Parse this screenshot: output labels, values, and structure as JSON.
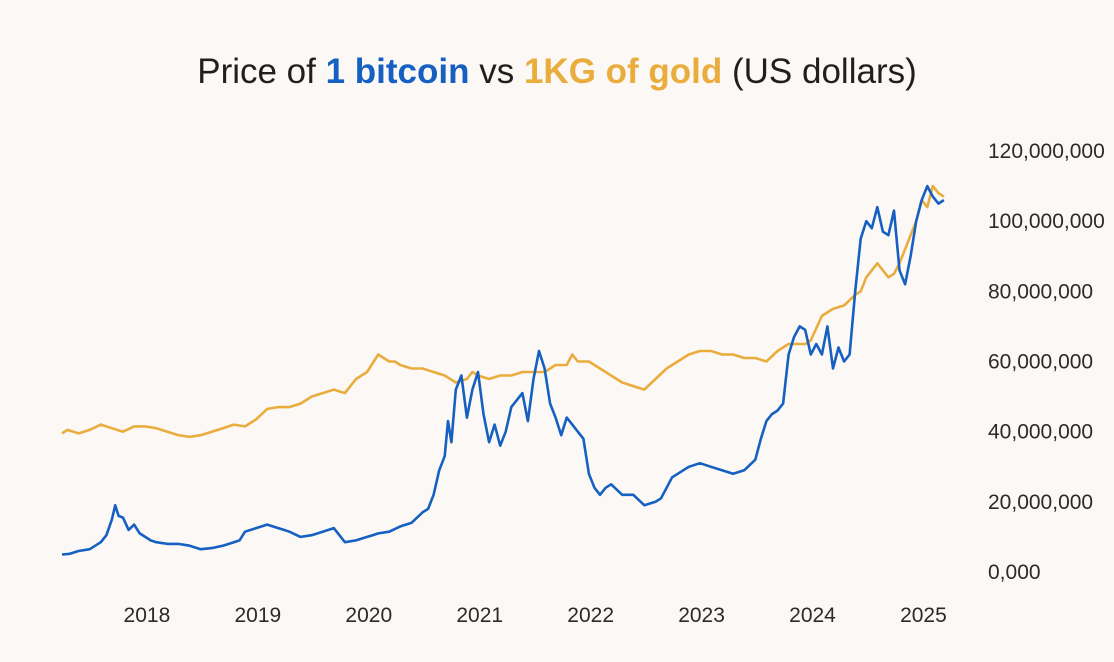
{
  "chart_data": {
    "type": "line",
    "title": {
      "prefix": "Price of ",
      "series1_label": "1 bitcoin",
      "middle": " vs ",
      "series2_label": "1KG of gold",
      "suffix": " (US dollars)"
    },
    "xlabel": "",
    "ylabel": "",
    "xlim": [
      2017.55,
      2025.6
    ],
    "ylim": [
      0,
      120000000
    ],
    "x_ticks": [
      2018,
      2019,
      2020,
      2021,
      2022,
      2023,
      2024,
      2025
    ],
    "x_tick_labels": [
      "2018",
      "2019",
      "2020",
      "2021",
      "2022",
      "2023",
      "2024",
      "2025"
    ],
    "y_ticks": [
      0,
      20000000,
      40000000,
      60000000,
      80000000,
      100000000,
      120000000
    ],
    "y_tick_labels": [
      "0,000",
      "20,000,000",
      "40,000,000",
      "60,000,000",
      "80,000,000",
      "100,000,000",
      "120,000,000"
    ],
    "grid": false,
    "legend": "in title",
    "series": [
      {
        "name": "1 bitcoin",
        "color": "#1560c0",
        "x": [
          2017.55,
          2017.62,
          2017.7,
          2017.8,
          2017.9,
          2017.95,
          2018.0,
          2018.03,
          2018.06,
          2018.1,
          2018.15,
          2018.2,
          2018.25,
          2018.3,
          2018.35,
          2018.4,
          2018.5,
          2018.6,
          2018.7,
          2018.8,
          2018.9,
          2019.0,
          2019.1,
          2019.15,
          2019.2,
          2019.3,
          2019.4,
          2019.5,
          2019.55,
          2019.6,
          2019.7,
          2019.8,
          2019.9,
          2020.0,
          2020.1,
          2020.2,
          2020.3,
          2020.35,
          2020.4,
          2020.5,
          2020.6,
          2020.7,
          2020.8,
          2020.85,
          2020.9,
          2020.95,
          2021.0,
          2021.03,
          2021.06,
          2021.1,
          2021.15,
          2021.2,
          2021.25,
          2021.3,
          2021.35,
          2021.4,
          2021.45,
          2021.5,
          2021.55,
          2021.6,
          2021.7,
          2021.75,
          2021.8,
          2021.85,
          2021.9,
          2021.95,
          2022.0,
          2022.05,
          2022.1,
          2022.15,
          2022.2,
          2022.25,
          2022.3,
          2022.35,
          2022.4,
          2022.45,
          2022.5,
          2022.6,
          2022.7,
          2022.8,
          2022.9,
          2022.95,
          2023.0,
          2023.05,
          2023.1,
          2023.2,
          2023.3,
          2023.4,
          2023.5,
          2023.6,
          2023.7,
          2023.8,
          2023.85,
          2023.9,
          2023.95,
          2024.0,
          2024.05,
          2024.1,
          2024.15,
          2024.2,
          2024.25,
          2024.3,
          2024.35,
          2024.4,
          2024.45,
          2024.5,
          2024.55,
          2024.6,
          2024.65,
          2024.7,
          2024.75,
          2024.8,
          2024.85,
          2024.9,
          2024.95,
          2025.0,
          2025.05,
          2025.1,
          2025.15,
          2025.2,
          2025.25,
          2025.3,
          2025.35,
          2025.4,
          2025.45,
          2025.5
        ],
        "values": [
          5000000,
          5200000,
          6000000,
          6500000,
          8500000,
          10500000,
          15000000,
          19000000,
          16000000,
          15500000,
          12000000,
          13500000,
          11000000,
          10000000,
          9000000,
          8500000,
          8000000,
          8000000,
          7500000,
          6500000,
          6800000,
          7500000,
          8500000,
          9000000,
          11500000,
          12500000,
          13500000,
          12500000,
          12000000,
          11500000,
          10000000,
          10500000,
          11500000,
          12500000,
          8500000,
          9000000,
          10000000,
          10500000,
          11000000,
          11500000,
          13000000,
          14000000,
          17000000,
          18000000,
          22000000,
          29000000,
          33000000,
          43000000,
          37000000,
          52000000,
          56000000,
          44000000,
          52000000,
          57000000,
          45000000,
          37000000,
          42000000,
          36000000,
          40000000,
          47000000,
          51000000,
          43000000,
          55000000,
          63000000,
          58000000,
          48000000,
          44000000,
          39000000,
          44000000,
          42000000,
          40000000,
          38000000,
          28000000,
          24000000,
          22000000,
          24000000,
          25000000,
          22000000,
          22000000,
          19000000,
          20000000,
          21000000,
          24000000,
          27000000,
          28000000,
          30000000,
          31000000,
          30000000,
          29000000,
          28000000,
          29000000,
          32000000,
          38000000,
          43000000,
          45000000,
          46000000,
          48000000,
          62000000,
          67000000,
          70000000,
          69000000,
          62000000,
          65000000,
          62000000,
          70000000,
          58000000,
          64000000,
          60000000,
          62000000,
          80000000,
          95000000,
          100000000,
          98000000,
          104000000,
          97000000,
          96000000,
          103000000,
          86000000,
          82000000,
          90000000,
          100000000,
          106000000,
          110000000,
          107000000,
          105000000,
          106000000
        ]
      },
      {
        "name": "1KG of gold",
        "color": "#e9ad3d",
        "x": [
          2017.55,
          2017.6,
          2017.7,
          2017.8,
          2017.9,
          2018.0,
          2018.1,
          2018.2,
          2018.3,
          2018.4,
          2018.5,
          2018.6,
          2018.7,
          2018.8,
          2018.9,
          2019.0,
          2019.1,
          2019.2,
          2019.3,
          2019.4,
          2019.5,
          2019.6,
          2019.7,
          2019.8,
          2019.9,
          2020.0,
          2020.1,
          2020.15,
          2020.2,
          2020.3,
          2020.4,
          2020.5,
          2020.55,
          2020.6,
          2020.7,
          2020.8,
          2020.9,
          2021.0,
          2021.1,
          2021.2,
          2021.25,
          2021.3,
          2021.4,
          2021.5,
          2021.6,
          2021.7,
          2021.8,
          2021.9,
          2022.0,
          2022.1,
          2022.15,
          2022.2,
          2022.3,
          2022.4,
          2022.5,
          2022.6,
          2022.7,
          2022.8,
          2022.9,
          2023.0,
          2023.1,
          2023.2,
          2023.3,
          2023.4,
          2023.5,
          2023.6,
          2023.7,
          2023.8,
          2023.9,
          2024.0,
          2024.1,
          2024.2,
          2024.25,
          2024.3,
          2024.4,
          2024.5,
          2024.6,
          2024.7,
          2024.75,
          2024.8,
          2024.9,
          2025.0,
          2025.05,
          2025.1,
          2025.15,
          2025.2,
          2025.25,
          2025.3,
          2025.35,
          2025.4,
          2025.45,
          2025.5
        ],
        "values": [
          39500000,
          40500000,
          39500000,
          40500000,
          42000000,
          41000000,
          40000000,
          41500000,
          41500000,
          41000000,
          40000000,
          39000000,
          38500000,
          39000000,
          40000000,
          41000000,
          42000000,
          41500000,
          43500000,
          46500000,
          47000000,
          47000000,
          48000000,
          50000000,
          51000000,
          52000000,
          51000000,
          53000000,
          55000000,
          57000000,
          62000000,
          60000000,
          60000000,
          59000000,
          58000000,
          58000000,
          57000000,
          56000000,
          54000000,
          55000000,
          57000000,
          56000000,
          55000000,
          56000000,
          56000000,
          57000000,
          57000000,
          57000000,
          59000000,
          59000000,
          62000000,
          60000000,
          60000000,
          58000000,
          56000000,
          54000000,
          53000000,
          52000000,
          55000000,
          58000000,
          60000000,
          62000000,
          63000000,
          63000000,
          62000000,
          62000000,
          61000000,
          61000000,
          60000000,
          63000000,
          65000000,
          65000000,
          65000000,
          66000000,
          73000000,
          75000000,
          76000000,
          79000000,
          80000000,
          84000000,
          88000000,
          84000000,
          85000000,
          88000000,
          92000000,
          96000000,
          100000000,
          106000000,
          104000000,
          110000000,
          108000000,
          107000000
        ]
      }
    ]
  }
}
